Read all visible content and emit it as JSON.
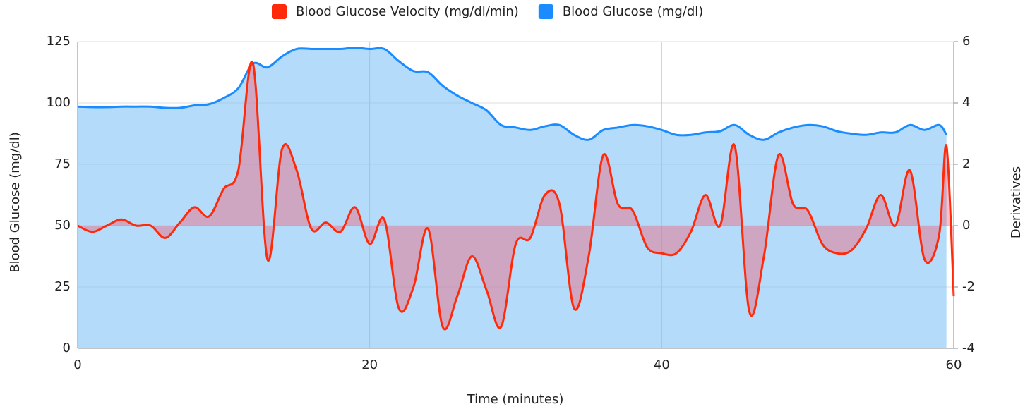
{
  "chart_data": {
    "type": "line",
    "x": [
      0,
      1,
      2,
      3,
      4,
      5,
      6,
      7,
      8,
      9,
      10,
      11,
      12,
      13,
      14,
      15,
      16,
      17,
      18,
      19,
      20,
      21,
      22,
      23,
      24,
      25,
      26,
      27,
      28,
      29,
      30,
      31,
      32,
      33,
      34,
      35,
      36,
      37,
      38,
      39,
      40,
      41,
      42,
      43,
      44,
      45,
      46,
      47,
      48,
      49,
      50,
      51,
      52,
      53,
      54,
      55,
      56,
      57,
      58,
      59,
      59.5,
      60
    ],
    "series": [
      {
        "name": "Blood Glucose Velocity (mg/dl/min)",
        "color": "#ff2a0a",
        "axis": "y2",
        "fill": "rgba(255,70,90,0.35)",
        "values": [
          0,
          -0.2,
          0,
          0.2,
          0,
          0,
          -0.4,
          0.1,
          0.6,
          0.3,
          1.2,
          1.8,
          5.3,
          -1.1,
          2.5,
          1.8,
          -0.1,
          0.1,
          -0.2,
          0.6,
          -0.6,
          0.2,
          -2.7,
          -2.0,
          -0.1,
          -3.3,
          -2.3,
          -1.0,
          -2.1,
          -3.3,
          -0.6,
          -0.4,
          1.0,
          0.7,
          -2.7,
          -1.0,
          2.3,
          0.7,
          0.5,
          -0.7,
          -0.9,
          -0.9,
          -0.2,
          1.0,
          0,
          2.6,
          -2.8,
          -1.0,
          2.3,
          0.7,
          0.5,
          -0.6,
          -0.9,
          -0.8,
          -0.1,
          1.0,
          0,
          1.8,
          -1.1,
          -0.3,
          2.6,
          -2.3
        ]
      },
      {
        "name": "Blood Glucose (mg/dl)",
        "color": "#1a8cff",
        "axis": "y",
        "fill": "rgba(120,190,245,0.55)",
        "values": [
          98.5,
          98.3,
          98.3,
          98.5,
          98.5,
          98.5,
          98,
          98,
          99,
          99.5,
          102,
          106,
          116,
          114.5,
          119,
          122,
          122,
          122,
          122,
          122.5,
          122,
          122,
          117,
          113,
          112.5,
          107,
          103,
          100,
          97,
          91,
          90,
          89,
          90.5,
          91,
          87,
          85,
          89,
          90,
          91,
          90.5,
          89,
          87,
          87,
          88,
          88.5,
          91,
          87,
          85,
          88,
          90,
          91,
          90.5,
          88.5,
          87.5,
          87,
          88,
          88,
          91,
          89,
          91,
          87,
          null
        ]
      }
    ],
    "xlabel": "Time (minutes)",
    "ylabel": "Blood Glucose (mg/dl)",
    "y2label": "Derivatives",
    "xlim": [
      0,
      60
    ],
    "xticks": [
      0,
      20,
      40,
      60
    ],
    "ylim": [
      0,
      125
    ],
    "yticks": [
      0,
      25,
      50,
      75,
      100,
      125
    ],
    "y2lim": [
      -4,
      6
    ],
    "y2ticks": [
      -4,
      -2,
      0,
      2,
      4,
      6
    ],
    "grid": true,
    "legend": "top"
  }
}
